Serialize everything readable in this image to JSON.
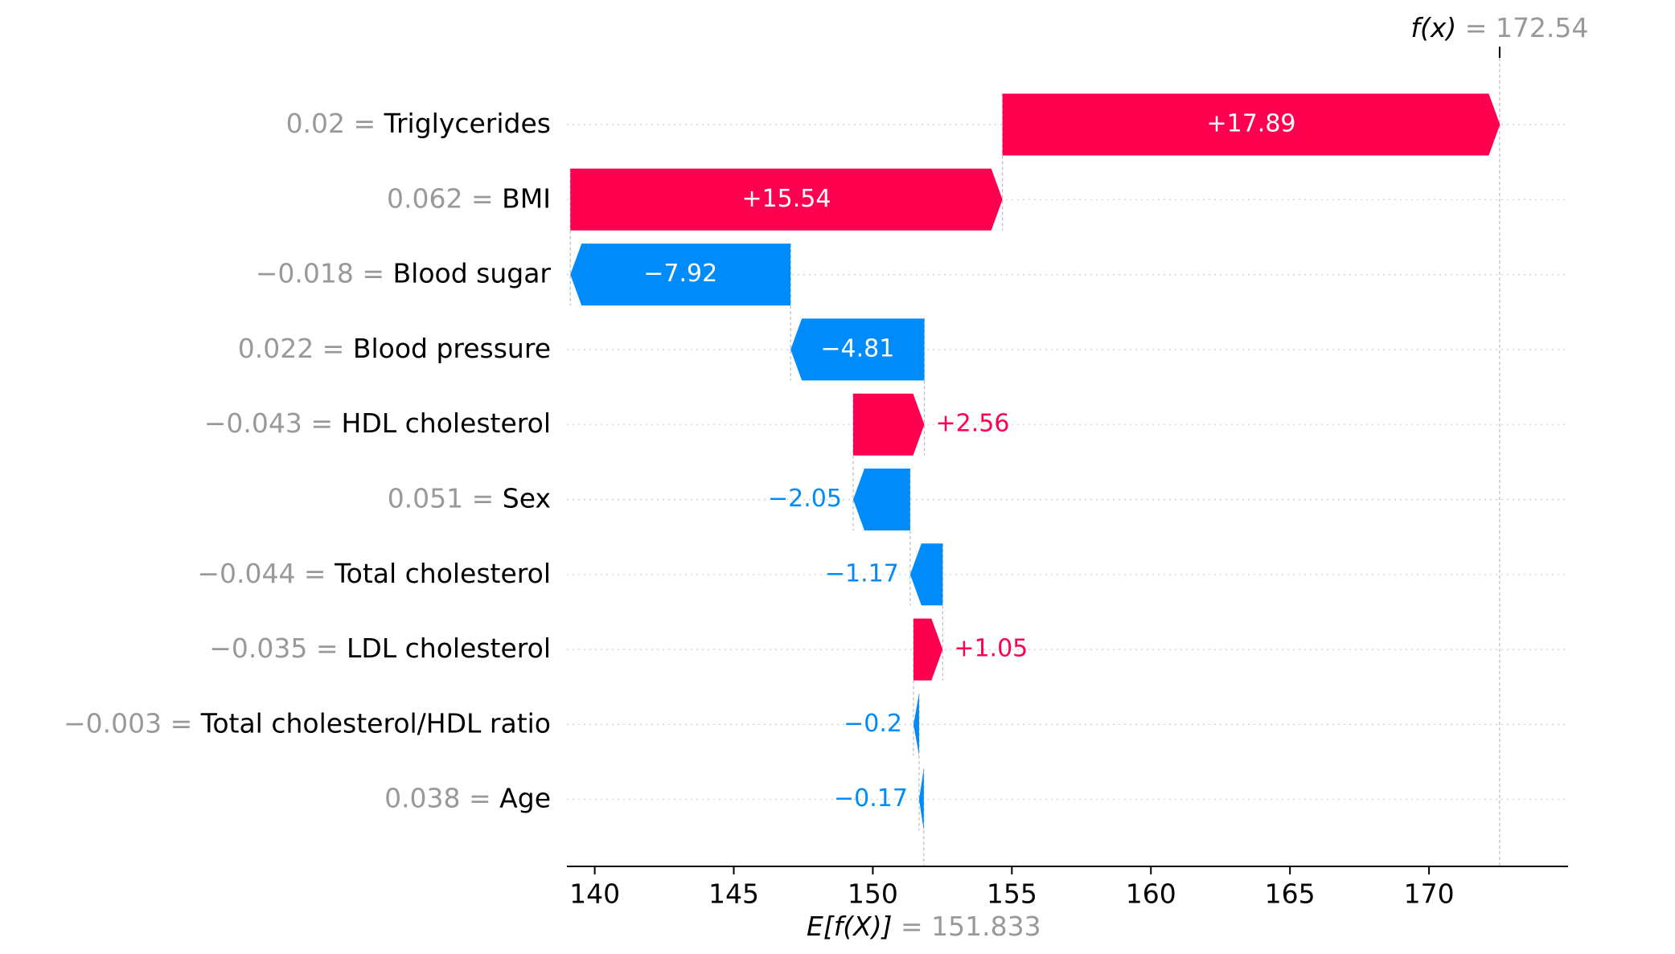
{
  "chart_data": {
    "type": "waterfall",
    "base_value": 151.833,
    "base_label": "E[f(X)]",
    "base_value_text": "151.833",
    "final_value": 172.54,
    "final_label": "f(x)",
    "final_value_text": "172.54",
    "xlim": [
      139,
      175
    ],
    "x_ticks": [
      140,
      145,
      150,
      155,
      160,
      165,
      170
    ],
    "features": [
      {
        "value_text": "0.02",
        "name": "Triglycerides",
        "shap": 17.89,
        "label": "+17.89"
      },
      {
        "value_text": "0.062",
        "name": "BMI",
        "shap": 15.54,
        "label": "+15.54"
      },
      {
        "value_text": "−0.018",
        "name": "Blood sugar",
        "shap": -7.92,
        "label": "−7.92"
      },
      {
        "value_text": "0.022",
        "name": "Blood pressure",
        "shap": -4.81,
        "label": "−4.81"
      },
      {
        "value_text": "−0.043",
        "name": "HDL cholesterol",
        "shap": 2.56,
        "label": "+2.56"
      },
      {
        "value_text": "0.051",
        "name": "Sex",
        "shap": -2.05,
        "label": "−2.05"
      },
      {
        "value_text": "−0.044",
        "name": "Total cholesterol",
        "shap": -1.17,
        "label": "−1.17"
      },
      {
        "value_text": "−0.035",
        "name": "LDL cholesterol",
        "shap": 1.05,
        "label": "+1.05"
      },
      {
        "value_text": "−0.003",
        "name": "Total cholesterol/HDL ratio",
        "shap": -0.2,
        "label": "−0.2"
      },
      {
        "value_text": "0.038",
        "name": "Age",
        "shap": -0.17,
        "label": "−0.17"
      }
    ],
    "colors": {
      "positive": "#ff0051",
      "negative": "#008bfb",
      "muted": "#999999",
      "text": "#000000",
      "grid": "#cccccc"
    }
  }
}
